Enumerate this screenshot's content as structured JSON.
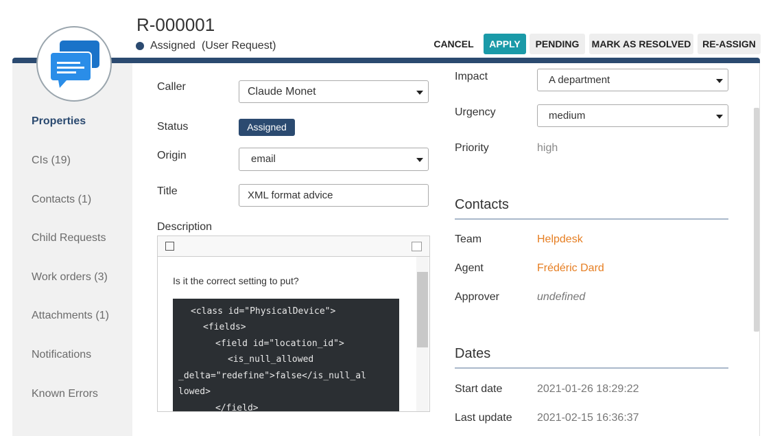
{
  "header": {
    "ref": "R-000001",
    "status": "Assigned",
    "class": "(User Request)"
  },
  "buttons": [
    "CANCEL",
    "APPLY",
    "PENDING",
    "MARK AS RESOLVED",
    "RE-ASSIGN"
  ],
  "tabs": [
    "Properties",
    "CIs (19)",
    "Contacts (1)",
    "Child Requests",
    "Work orders (3)",
    "Attachments (1)",
    "Notifications",
    "Known Errors"
  ],
  "fields": {
    "caller": {
      "label": "Caller",
      "value": "Claude Monet"
    },
    "status": {
      "label": "Status",
      "value": "Assigned"
    },
    "origin": {
      "label": "Origin",
      "value": "email"
    },
    "title": {
      "label": "Title",
      "value": "XML format advice"
    },
    "description": {
      "label": "Description",
      "text": "Is it the correct setting to put?",
      "code": [
        "<class id=\"PhysicalDevice\">",
        "<fields>",
        "<field id=\"location_id\">",
        "<is_null_allowed",
        "_delta=\"redefine\">false</is_null_al",
        "lowed>",
        "</field>"
      ]
    },
    "impact": {
      "label": "Impact",
      "value": "A department"
    },
    "urgency": {
      "label": "Urgency",
      "value": "medium"
    },
    "priority": {
      "label": "Priority",
      "value": "high"
    }
  },
  "contacts": {
    "title": "Contacts",
    "team": {
      "label": "Team",
      "value": "Helpdesk"
    },
    "agent": {
      "label": "Agent",
      "value": "Frédéric Dard"
    },
    "approver": {
      "label": "Approver",
      "value": "undefined"
    }
  },
  "dates": {
    "title": "Dates",
    "start": {
      "label": "Start date",
      "value": "2021-01-26 18:29:22"
    },
    "update": {
      "label": "Last update",
      "value": "2021-02-15 16:36:37"
    }
  }
}
